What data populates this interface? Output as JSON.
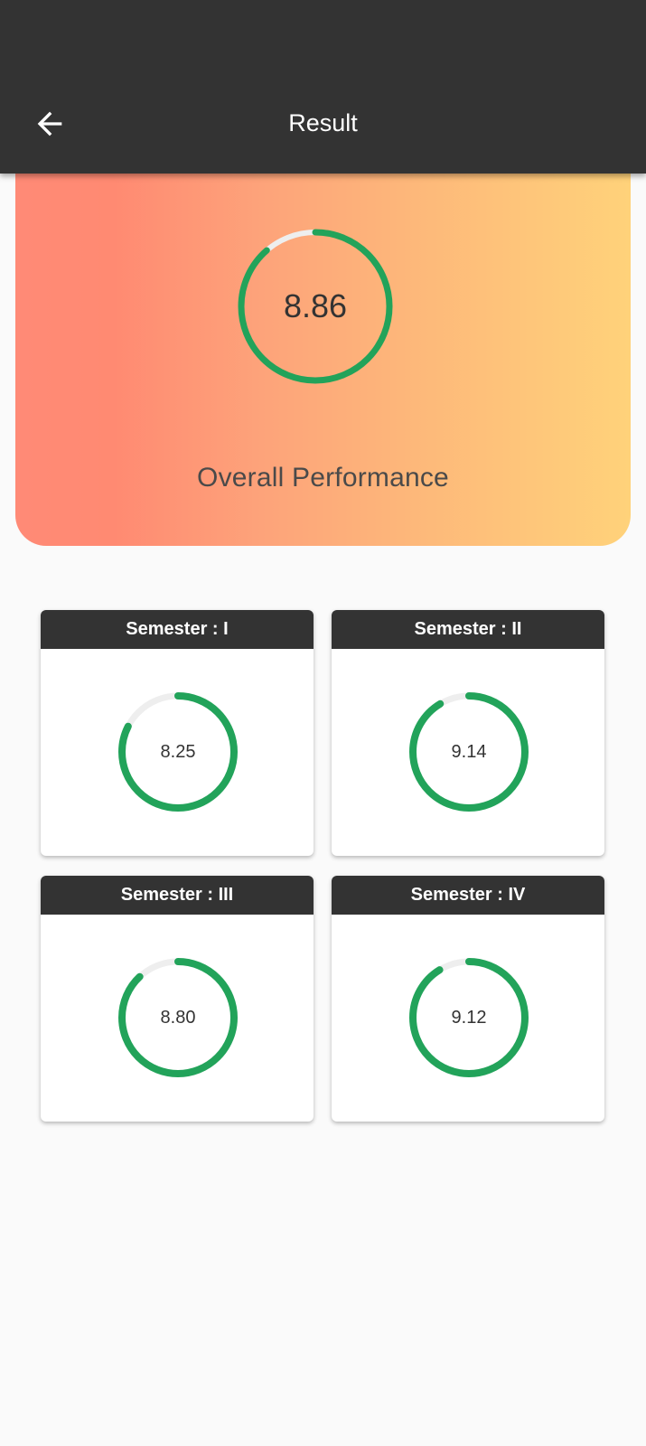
{
  "header": {
    "title": "Result",
    "back_icon": "arrow-left-icon"
  },
  "overall": {
    "value": "8.86",
    "label": "Overall Performance",
    "progress": 0.886
  },
  "semesters": [
    {
      "title": "Semester : I",
      "value": "8.25",
      "progress": 0.825
    },
    {
      "title": "Semester : II",
      "value": "9.14",
      "progress": 0.914
    },
    {
      "title": "Semester : III",
      "value": "8.80",
      "progress": 0.88
    },
    {
      "title": "Semester : IV",
      "value": "9.12",
      "progress": 0.912
    }
  ],
  "colors": {
    "app_bar": "#333333",
    "progress_fill": "#22a35a",
    "progress_track": "#eeeeee",
    "gradient_start": "#ff8a76",
    "gradient_end": "#ffd27a"
  }
}
